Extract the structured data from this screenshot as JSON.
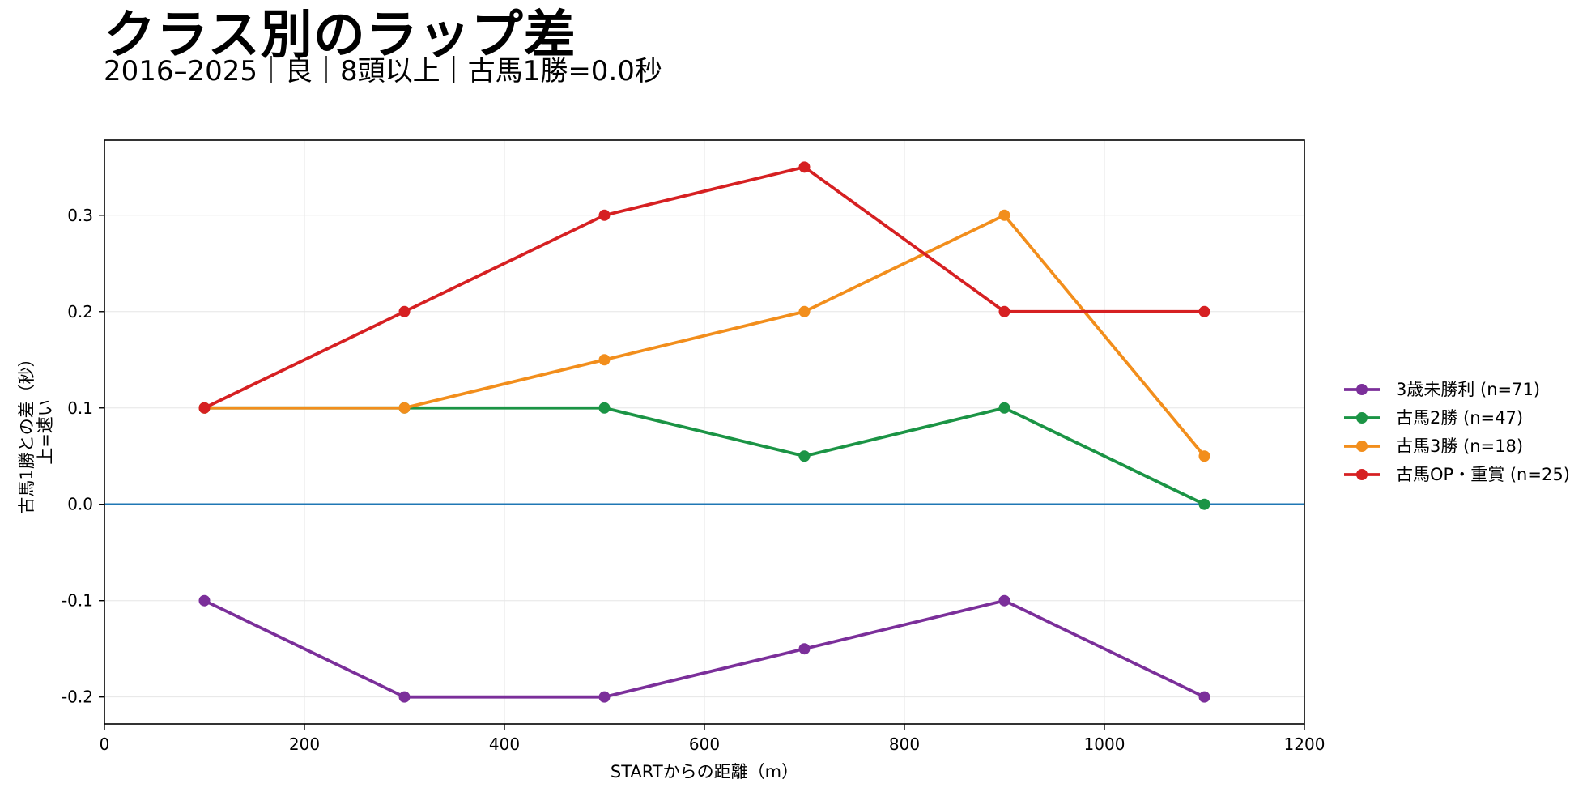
{
  "chart_data": {
    "type": "line",
    "title": "クラス別のラップ差",
    "subtitle": "2016–2025｜良｜8頭以上｜古馬1勝=0.0秒",
    "xlabel": "STARTからの距離（m）",
    "ylabel_lines": [
      "古馬1勝との差（秒）",
      "上=速い"
    ],
    "xlim": [
      0,
      1200
    ],
    "ylim": [
      -0.228,
      0.378
    ],
    "xticks": [
      0,
      200,
      400,
      600,
      800,
      1000,
      1200
    ],
    "xtick_labels": [
      "0",
      "200",
      "400",
      "600",
      "800",
      "1000",
      "1200"
    ],
    "yticks": [
      -0.2,
      -0.1,
      0.0,
      0.1,
      0.2,
      0.3
    ],
    "ytick_labels": [
      "-0.2",
      "-0.1",
      "0.0",
      "0.1",
      "0.2",
      "0.3"
    ],
    "grid": true,
    "legend_position": "right",
    "reference_line": {
      "y": 0.0,
      "color": "#1f77b4"
    },
    "x": [
      100,
      300,
      500,
      700,
      900,
      1100
    ],
    "series": [
      {
        "name": "3歳未勝利 (n=71)",
        "color": "#7b2f9a",
        "values": [
          -0.1,
          -0.2,
          -0.2,
          -0.15,
          -0.1,
          -0.2
        ]
      },
      {
        "name": "古馬2勝 (n=47)",
        "color": "#1b9445",
        "values": [
          0.1,
          0.1,
          0.1,
          0.05,
          0.1,
          0.0
        ]
      },
      {
        "name": "古馬3勝 (n=18)",
        "color": "#f28e1c",
        "values": [
          0.1,
          0.1,
          0.15,
          0.2,
          0.3,
          0.05
        ]
      },
      {
        "name": "古馬OP・重賞 (n=25)",
        "color": "#d62022",
        "values": [
          0.1,
          0.2,
          0.3,
          0.35,
          0.2,
          0.2
        ]
      }
    ]
  }
}
